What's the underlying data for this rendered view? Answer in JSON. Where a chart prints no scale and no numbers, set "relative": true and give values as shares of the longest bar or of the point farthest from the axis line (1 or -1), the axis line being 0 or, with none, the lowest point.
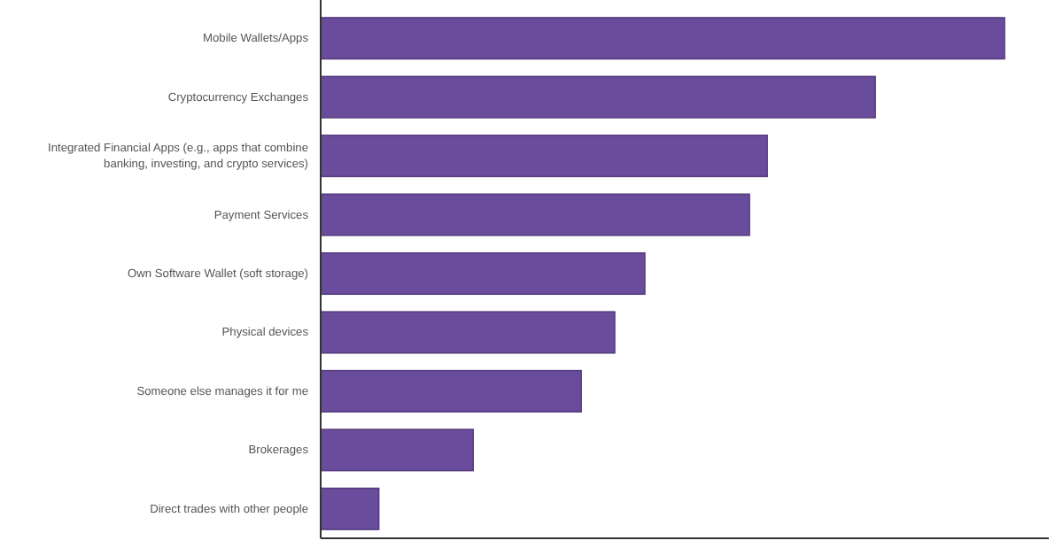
{
  "chart_data": {
    "type": "bar",
    "orientation": "horizontal",
    "relative": true,
    "color": "#6a4c9c",
    "categories": [
      "Mobile Wallets/Apps",
      "Cryptocurrency Exchanges",
      "Integrated Financial Apps (e.g., apps that combine banking, investing, and crypto services)",
      "Payment Services",
      "Own Software Wallet (soft storage)",
      "Physical devices",
      "Someone else manages it for me",
      "Brokerages",
      "Direct trades with other people"
    ],
    "values": [
      1,
      0.811,
      0.653,
      0.627,
      0.474,
      0.43,
      0.381,
      0.223,
      0.085
    ]
  }
}
